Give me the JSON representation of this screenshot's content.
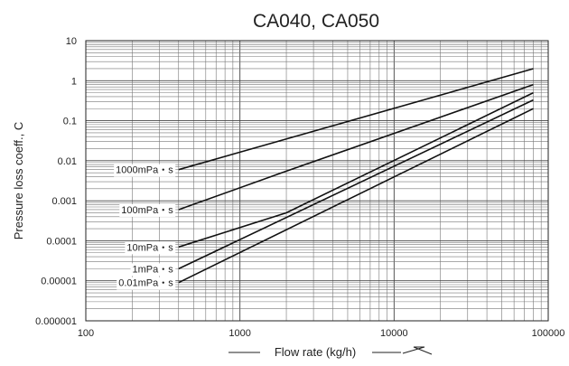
{
  "chart_data": {
    "type": "line",
    "title": "CA040, CA050",
    "xlabel": "Flow rate (kg/h)",
    "ylabel": "Pressure loss coeff., C",
    "x_scale": "log",
    "y_scale": "log",
    "xlim": [
      100,
      100000
    ],
    "ylim": [
      1e-06,
      10
    ],
    "x_ticks": [
      "100",
      "1000",
      "10000",
      "100000"
    ],
    "y_ticks": [
      "0.000001",
      "0.00001",
      "0.0001",
      "0.001",
      "0.01",
      "0.1",
      "1",
      "10"
    ],
    "grid": true,
    "series": [
      {
        "name": "1000mPa・s",
        "x": [
          400,
          80000
        ],
        "y": [
          0.006,
          2
        ]
      },
      {
        "name": "100mPa・s",
        "x": [
          400,
          2000,
          80000
        ],
        "y": [
          0.0006,
          0.0055,
          0.8
        ]
      },
      {
        "name": "10mPa・s",
        "x": [
          400,
          2000,
          80000
        ],
        "y": [
          7e-05,
          0.0005,
          0.5
        ]
      },
      {
        "name": "1mPa・s",
        "x": [
          400,
          80000
        ],
        "y": [
          2e-05,
          0.33
        ]
      },
      {
        "name": "0.01mPa・s",
        "x": [
          400,
          80000
        ],
        "y": [
          9e-06,
          0.2
        ]
      }
    ]
  }
}
